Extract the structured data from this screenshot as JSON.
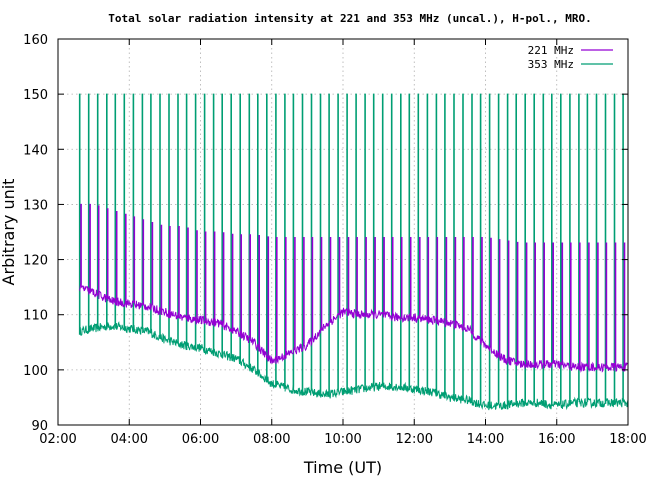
{
  "chart_data": {
    "type": "line",
    "title": "Total solar radiation intensity at 221 and 353 MHz (uncal.), H-pol., MRO.",
    "xlabel": "Time (UT)",
    "ylabel": "Arbitrary unit",
    "xlim": [
      "02:00",
      "18:00"
    ],
    "ylim": [
      90,
      160
    ],
    "x_ticks": [
      "02:00",
      "04:00",
      "06:00",
      "08:00",
      "10:00",
      "12:00",
      "14:00",
      "16:00",
      "18:00"
    ],
    "y_ticks": [
      90,
      100,
      110,
      120,
      130,
      140,
      150,
      160
    ],
    "grid": true,
    "legend_position": "top-right",
    "calibration_spike_interval_min": 15,
    "series": [
      {
        "name": "221 MHz",
        "color": "#9400d3",
        "x": [
          "02:36",
          "03:00",
          "03:30",
          "04:00",
          "04:30",
          "05:00",
          "05:30",
          "06:00",
          "06:30",
          "07:00",
          "07:30",
          "08:00",
          "08:30",
          "09:00",
          "09:30",
          "10:00",
          "10:30",
          "11:00",
          "11:30",
          "12:00",
          "12:30",
          "13:00",
          "13:30",
          "14:00",
          "14:30",
          "15:00",
          "15:30",
          "16:00",
          "16:30",
          "17:00",
          "17:30",
          "18:00"
        ],
        "y": [
          115,
          114,
          112.5,
          112,
          111.5,
          110.5,
          109.5,
          109,
          108.5,
          107,
          105,
          101.5,
          103,
          104.5,
          108,
          110.5,
          110,
          110,
          109.5,
          109.5,
          109,
          108.5,
          107.5,
          104.5,
          102,
          101,
          101,
          101,
          100.5,
          100.5,
          100.5,
          100.5
        ],
        "spike_high": [
          130,
          130,
          129,
          128,
          127,
          126,
          126,
          125,
          125,
          124.5,
          124.5,
          124,
          124,
          124,
          124,
          124,
          124,
          124,
          124,
          124,
          124,
          124,
          124,
          124,
          123.5,
          123,
          123,
          123,
          123,
          123,
          123,
          123
        ]
      },
      {
        "name": "353 MHz",
        "color": "#009e73",
        "x": [
          "02:36",
          "03:00",
          "03:30",
          "04:00",
          "04:30",
          "05:00",
          "05:30",
          "06:00",
          "06:30",
          "07:00",
          "07:30",
          "08:00",
          "08:30",
          "09:00",
          "09:30",
          "10:00",
          "10:30",
          "11:00",
          "11:30",
          "12:00",
          "12:30",
          "13:00",
          "13:30",
          "14:00",
          "14:30",
          "15:00",
          "15:30",
          "16:00",
          "16:30",
          "17:00",
          "17:30",
          "18:00"
        ],
        "y": [
          107,
          107.5,
          108,
          107.5,
          107,
          105.5,
          104.5,
          104,
          103,
          102,
          100,
          97.5,
          96.5,
          96,
          95.5,
          96,
          96.5,
          97,
          97,
          96.5,
          96,
          95,
          94.5,
          93.5,
          93.5,
          94,
          94,
          93.5,
          94,
          94,
          94,
          94
        ],
        "spike_high": [
          150
        ]
      }
    ]
  }
}
